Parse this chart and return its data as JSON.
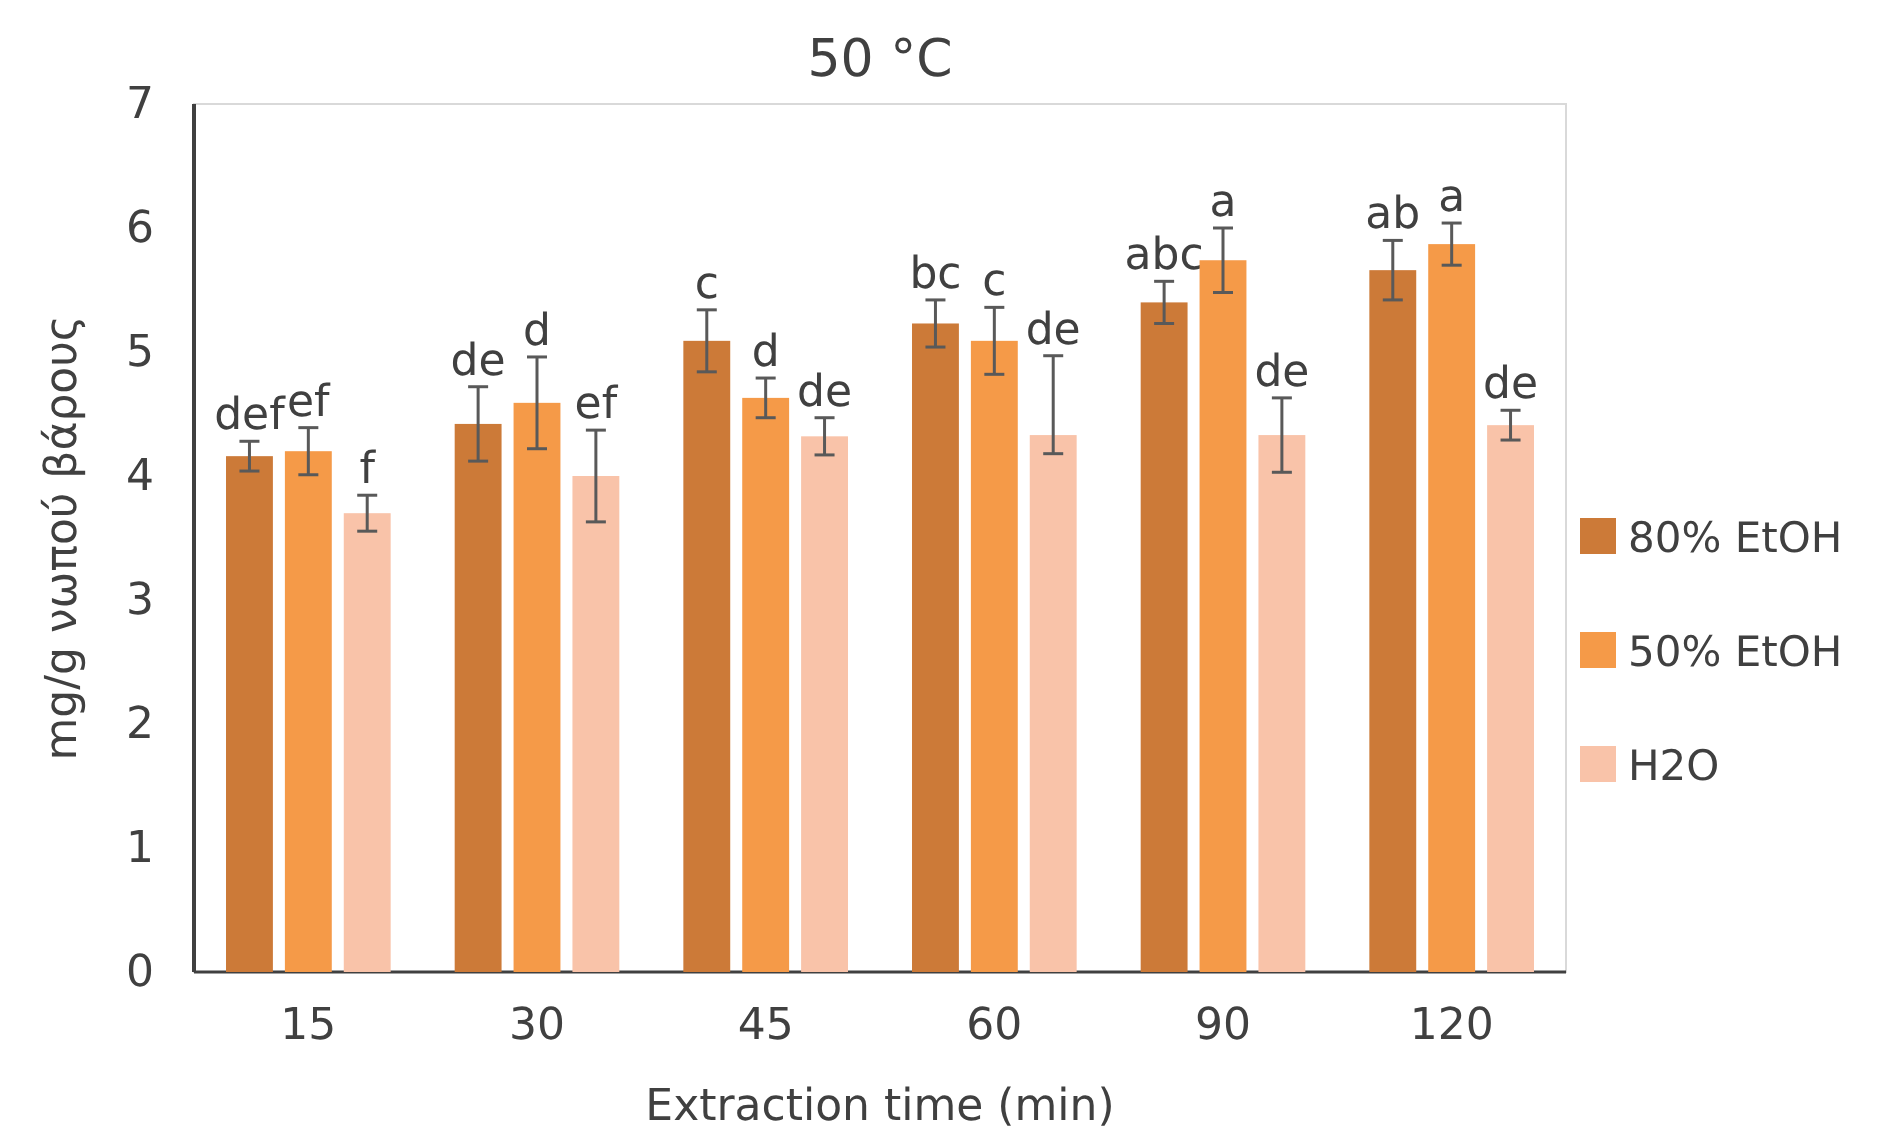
{
  "chart_data": {
    "type": "bar",
    "title": "50 °C",
    "xlabel": "Extraction time (min)",
    "ylabel": "mg/g νωπού βάρους",
    "categories": [
      "15",
      "30",
      "45",
      "60",
      "90",
      "120"
    ],
    "ylim": [
      0,
      7
    ],
    "yticks": [
      0,
      1,
      2,
      3,
      4,
      5,
      6,
      7
    ],
    "grid": false,
    "legend": "right",
    "series": [
      {
        "name": "80% EtOH",
        "color": "#cc7a38",
        "values": [
          4.16,
          4.42,
          5.09,
          5.23,
          5.4,
          5.66
        ],
        "errors": [
          0.12,
          0.3,
          0.25,
          0.19,
          0.17,
          0.24
        ],
        "value_labels": [
          "def",
          "de",
          "c",
          "bc",
          "abc",
          "ab"
        ]
      },
      {
        "name": "50% EtOH",
        "color": "#f59a48",
        "values": [
          4.2,
          4.59,
          4.63,
          5.09,
          5.74,
          5.87
        ],
        "errors": [
          0.19,
          0.37,
          0.16,
          0.27,
          0.26,
          0.17
        ],
        "value_labels": [
          "ef",
          "d",
          "d",
          "c",
          "a",
          "a"
        ]
      },
      {
        "name": "H2O",
        "color": "#f9c3a9",
        "values": [
          3.7,
          4.0,
          4.32,
          4.33,
          4.33,
          4.41
        ],
        "errors": [
          0.145,
          0.37,
          0.15,
          [
            4.18,
            4.97
          ],
          0.3,
          0.12
        ],
        "value_labels": [
          "f",
          "ef",
          "de",
          "de",
          "de",
          "de"
        ]
      }
    ]
  }
}
